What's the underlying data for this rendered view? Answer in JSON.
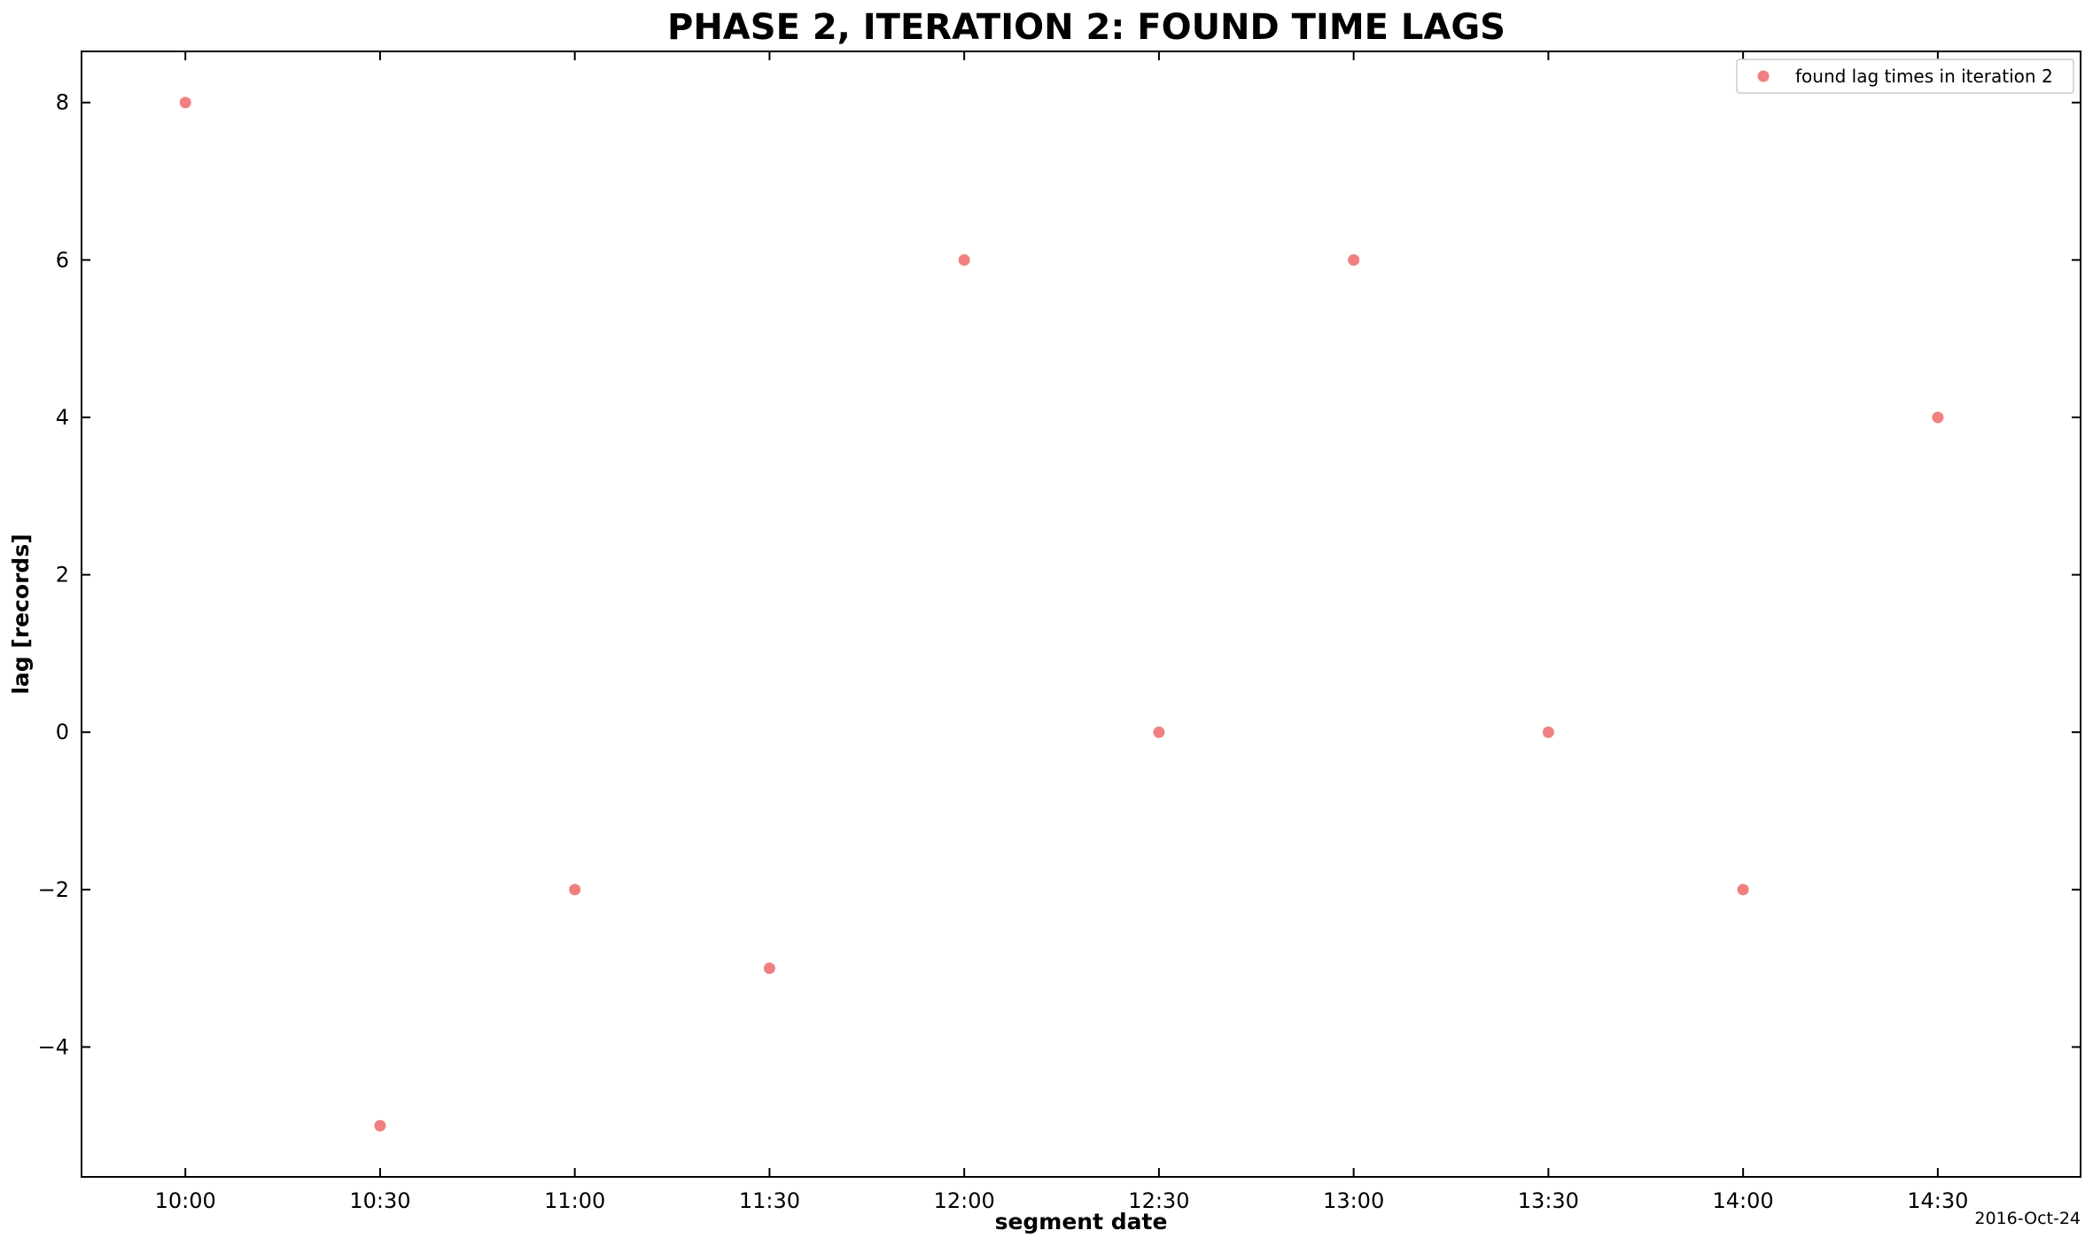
{
  "chart_data": {
    "type": "scatter",
    "title": "PHASE 2, ITERATION 2: FOUND TIME LAGS",
    "xlabel": "segment date",
    "ylabel": "lag  [records]",
    "date_label": "2016-Oct-24",
    "x_tick_labels": [
      "10:00",
      "10:30",
      "11:00",
      "11:30",
      "12:00",
      "12:30",
      "13:00",
      "13:30",
      "14:00",
      "14:30"
    ],
    "y_tick_labels": [
      "−4",
      "−2",
      "0",
      "2",
      "4",
      "6",
      "8"
    ],
    "y_tick_values": [
      -4,
      -2,
      0,
      2,
      4,
      6,
      8
    ],
    "xlim": [
      "2016-10-24 09:44",
      "2016-10-24 14:52"
    ],
    "ylim": [
      -5.65,
      8.65
    ],
    "grid": false,
    "legend_position": "top-right",
    "series": [
      {
        "name": "found lag times in iteration 2",
        "color": "#f08080",
        "points": [
          {
            "x": "2016-10-24 10:00",
            "y": 8
          },
          {
            "x": "2016-10-24 10:30",
            "y": -5
          },
          {
            "x": "2016-10-24 11:00",
            "y": -2
          },
          {
            "x": "2016-10-24 11:30",
            "y": -3
          },
          {
            "x": "2016-10-24 12:00",
            "y": 6
          },
          {
            "x": "2016-10-24 12:30",
            "y": 0
          },
          {
            "x": "2016-10-24 13:00",
            "y": 6
          },
          {
            "x": "2016-10-24 13:30",
            "y": 0
          },
          {
            "x": "2016-10-24 14:00",
            "y": -2
          },
          {
            "x": "2016-10-24 14:30",
            "y": 4
          }
        ]
      }
    ]
  }
}
